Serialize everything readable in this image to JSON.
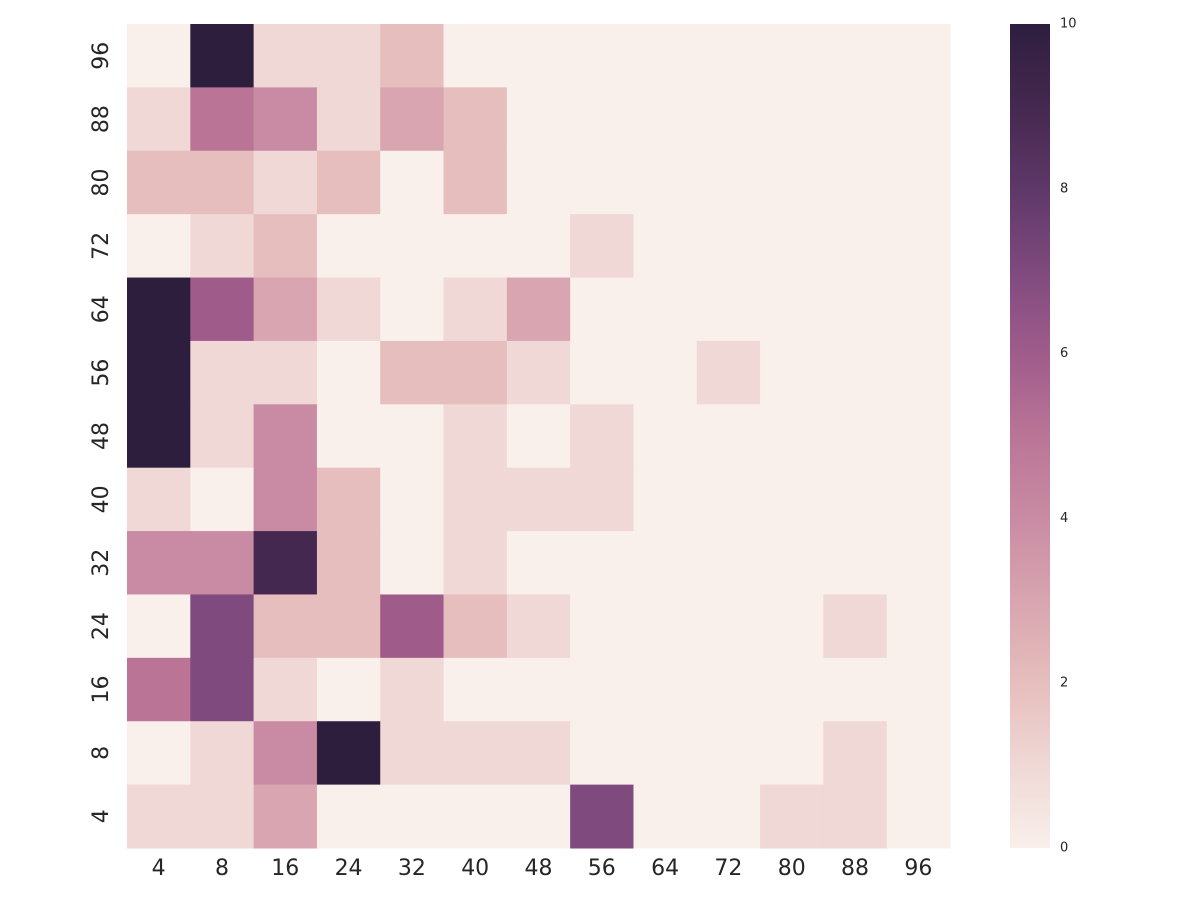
{
  "chart_data": {
    "type": "heatmap",
    "x": [
      4,
      8,
      16,
      24,
      32,
      40,
      48,
      56,
      64,
      72,
      80,
      88,
      96
    ],
    "y": [
      96,
      88,
      80,
      72,
      64,
      56,
      48,
      40,
      32,
      24,
      16,
      8,
      4
    ],
    "z": [
      [
        0,
        10,
        1,
        1,
        2,
        0,
        0,
        0,
        0,
        0,
        0,
        0,
        0
      ],
      [
        1,
        5,
        4,
        1,
        3,
        2,
        0,
        0,
        0,
        0,
        0,
        0,
        0
      ],
      [
        2,
        2,
        1,
        2,
        0,
        2,
        0,
        0,
        0,
        0,
        0,
        0,
        0
      ],
      [
        0,
        1,
        2,
        0,
        0,
        0,
        0,
        1,
        0,
        0,
        0,
        0,
        0
      ],
      [
        10,
        6,
        3,
        1,
        0,
        1,
        3,
        0,
        0,
        0,
        0,
        0,
        0
      ],
      [
        10,
        1,
        1,
        0,
        2,
        2,
        1,
        0,
        0,
        1,
        0,
        0,
        0
      ],
      [
        10,
        1,
        4,
        0,
        0,
        1,
        0,
        1,
        0,
        0,
        0,
        0,
        0
      ],
      [
        1,
        0,
        4,
        2,
        0,
        1,
        1,
        1,
        0,
        0,
        0,
        0,
        0
      ],
      [
        4,
        4,
        9,
        2,
        0,
        1,
        0,
        0,
        0,
        0,
        0,
        0,
        0
      ],
      [
        0,
        7,
        2,
        2,
        6,
        2,
        1,
        0,
        0,
        0,
        0,
        1,
        0
      ],
      [
        5,
        7,
        1,
        0,
        1,
        0,
        0,
        0,
        0,
        0,
        0,
        0,
        0
      ],
      [
        0,
        1,
        4,
        10,
        1,
        1,
        1,
        0,
        0,
        0,
        0,
        1,
        0
      ],
      [
        1,
        1,
        3,
        0,
        0,
        0,
        0,
        7,
        0,
        0,
        1,
        1,
        0
      ]
    ],
    "clim": [
      0,
      10
    ],
    "cticks": [
      0,
      2,
      4,
      6,
      8,
      10
    ],
    "colormap": [
      "#f9efeb",
      "#efd8d5",
      "#e6bebd",
      "#d8a5b0",
      "#c98ba3",
      "#ba7596",
      "#9f5c8b",
      "#7f4a7e",
      "#5e3868",
      "#45284f",
      "#2d1e3e"
    ]
  }
}
